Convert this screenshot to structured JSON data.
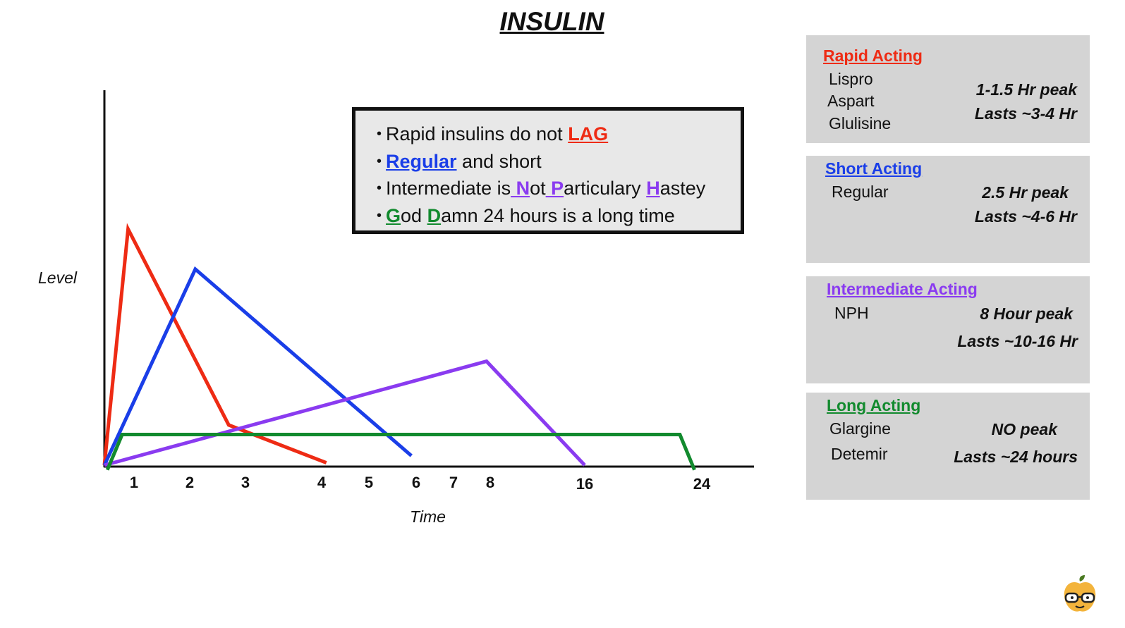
{
  "title": "INSULIN",
  "colors": {
    "rapid": "#ee2b14",
    "short": "#1a3ee8",
    "intermediate": "#8a3bf0",
    "long": "#128a2e",
    "axis": "#111111",
    "panel_bg": "#d4d4d4",
    "box_bg": "#e8e8e8"
  },
  "chart_data": {
    "type": "line",
    "xlabel": "Time",
    "ylabel": "Level",
    "x_ticks": [
      "1",
      "2",
      "3",
      "4",
      "5",
      "6",
      "7",
      "8",
      "16",
      "24"
    ],
    "series": [
      {
        "color": "#ee2b14",
        "points": [
          [
            0,
            0
          ],
          [
            0.8,
            100
          ],
          [
            2.7,
            17
          ],
          [
            4.1,
            1
          ]
        ]
      },
      {
        "color": "#1a3ee8",
        "points": [
          [
            0,
            0
          ],
          [
            2.1,
            83
          ],
          [
            5.9,
            4
          ]
        ]
      },
      {
        "color": "#8a3bf0",
        "points": [
          [
            0,
            0
          ],
          [
            7.9,
            44
          ],
          [
            16,
            0
          ]
        ]
      },
      {
        "color": "#128a2e",
        "points": [
          [
            0.1,
            -2
          ],
          [
            0.6,
            13
          ],
          [
            22.5,
            13
          ],
          [
            23.5,
            -2
          ]
        ]
      }
    ]
  },
  "mnemonic": {
    "lines": [
      {
        "parts": [
          {
            "t": "Rapid insulins do not ",
            "c": ""
          },
          {
            "t": "LAG",
            "c": "rapid"
          }
        ]
      },
      {
        "parts": [
          {
            "t": "Regular",
            "c": "short"
          },
          {
            "t": " and short",
            "c": ""
          }
        ]
      },
      {
        "parts": [
          {
            "t": "Intermediate is",
            "c": ""
          },
          {
            "t": " N",
            "c": "intermediate"
          },
          {
            "t": "ot",
            "c": ""
          },
          {
            "t": " P",
            "c": "intermediate"
          },
          {
            "t": "articulary ",
            "c": ""
          },
          {
            "t": "H",
            "c": "intermediate"
          },
          {
            "t": "astey",
            "c": ""
          }
        ]
      },
      {
        "parts": [
          {
            "t": "G",
            "c": "long"
          },
          {
            "t": "od ",
            "c": ""
          },
          {
            "t": "D",
            "c": "long"
          },
          {
            "t": "amn 24 hours is a long time",
            "c": ""
          }
        ]
      }
    ]
  },
  "panels": [
    {
      "title": "Rapid Acting",
      "color": "#ee2b14",
      "drugs": [
        "Lispro",
        "Aspart",
        "Glulisine"
      ],
      "peak": "1-1.5 Hr peak",
      "duration": "Lasts ~3-4 Hr"
    },
    {
      "title": "Short Acting",
      "color": "#1a3ee8",
      "drugs": [
        "Regular"
      ],
      "peak": "2.5 Hr peak",
      "duration": "Lasts ~4-6 Hr"
    },
    {
      "title": "Intermediate Acting",
      "color": "#8a3bf0",
      "drugs": [
        "NPH"
      ],
      "peak": "8 Hour peak",
      "duration": "Lasts ~10-16 Hr"
    },
    {
      "title": "Long Acting",
      "color": "#128a2e",
      "drugs": [
        "Glargine",
        "Detemir"
      ],
      "peak": "NO peak",
      "duration": "Lasts ~24 hours"
    }
  ],
  "logo_icon": "apple-with-glasses-icon"
}
